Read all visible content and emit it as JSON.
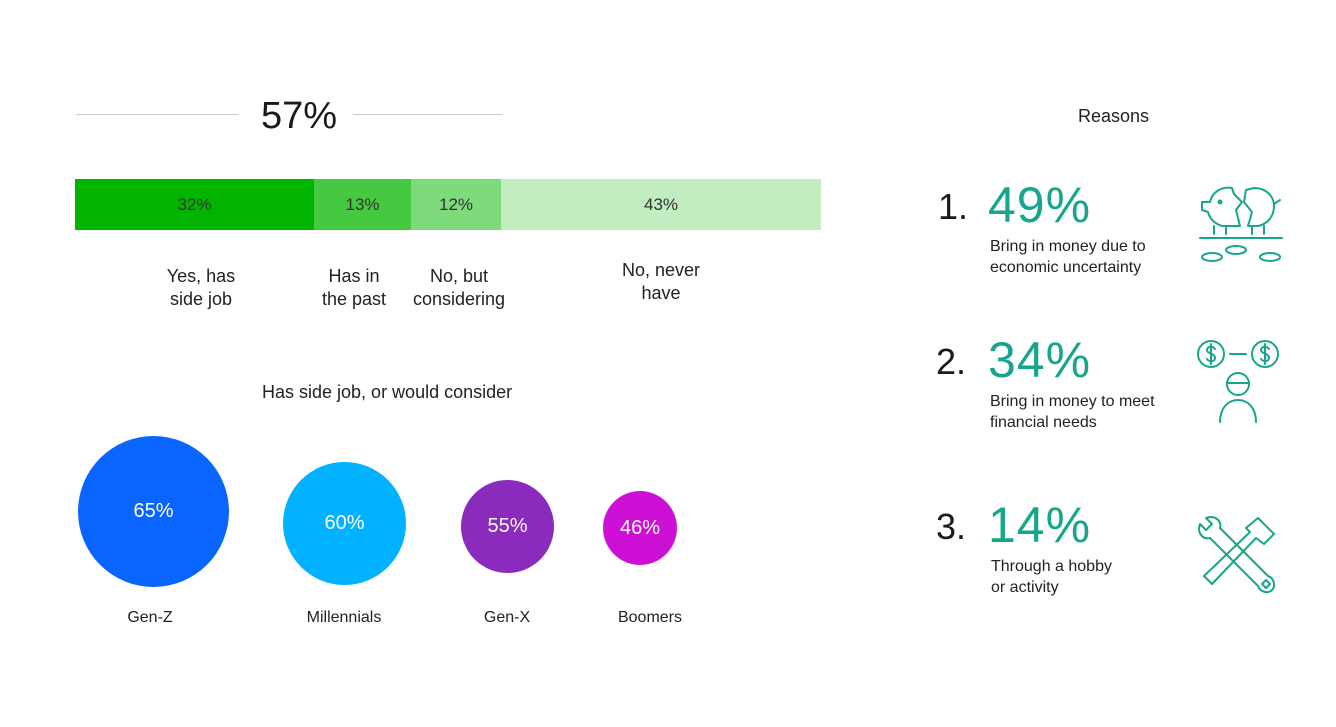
{
  "headline": {
    "value": "57%"
  },
  "colors": {
    "seg1": "#00b400",
    "seg2": "#44c940",
    "seg3": "#7fda7c",
    "seg4": "#c1edc0",
    "genz": "#0a64ff",
    "millennials": "#00b2ff",
    "genx": "#8a2bbd",
    "boomers": "#cc10d6",
    "accent": "#17a68c"
  },
  "chart_data": [
    {
      "type": "bar",
      "stacked": true,
      "orientation": "horizontal",
      "categories": [
        "Yes, has side job",
        "Has in the past",
        "No, but considering",
        "No, never have"
      ],
      "values": [
        32,
        13,
        12,
        43
      ],
      "value_labels": [
        "32%",
        "13%",
        "12%",
        "43%"
      ],
      "category_labels": [
        "Yes, has\nside job",
        "Has in\nthe past",
        "No, but\nconsidering",
        "No, never\nhave"
      ],
      "title": "57%"
    },
    {
      "type": "bubble",
      "title": "Has side job, or would consider",
      "categories": [
        "Gen-Z",
        "Millennials",
        "Gen-X",
        "Boomers"
      ],
      "values": [
        65,
        60,
        55,
        46
      ],
      "value_labels": [
        "65%",
        "60%",
        "55%",
        "46%"
      ]
    }
  ],
  "reasons": {
    "title": "Reasons",
    "items": [
      {
        "rank": "1.",
        "value": "49%",
        "text": "Bring in money due to\neconomic uncertainty",
        "icon": "piggy-bank-broken-icon"
      },
      {
        "rank": "2.",
        "value": "34%",
        "text": "Bring in money to meet\nfinancial needs",
        "icon": "person-money-icon"
      },
      {
        "rank": "3.",
        "value": "14%",
        "text": "Through a hobby\nor activity",
        "icon": "tools-icon"
      }
    ]
  }
}
